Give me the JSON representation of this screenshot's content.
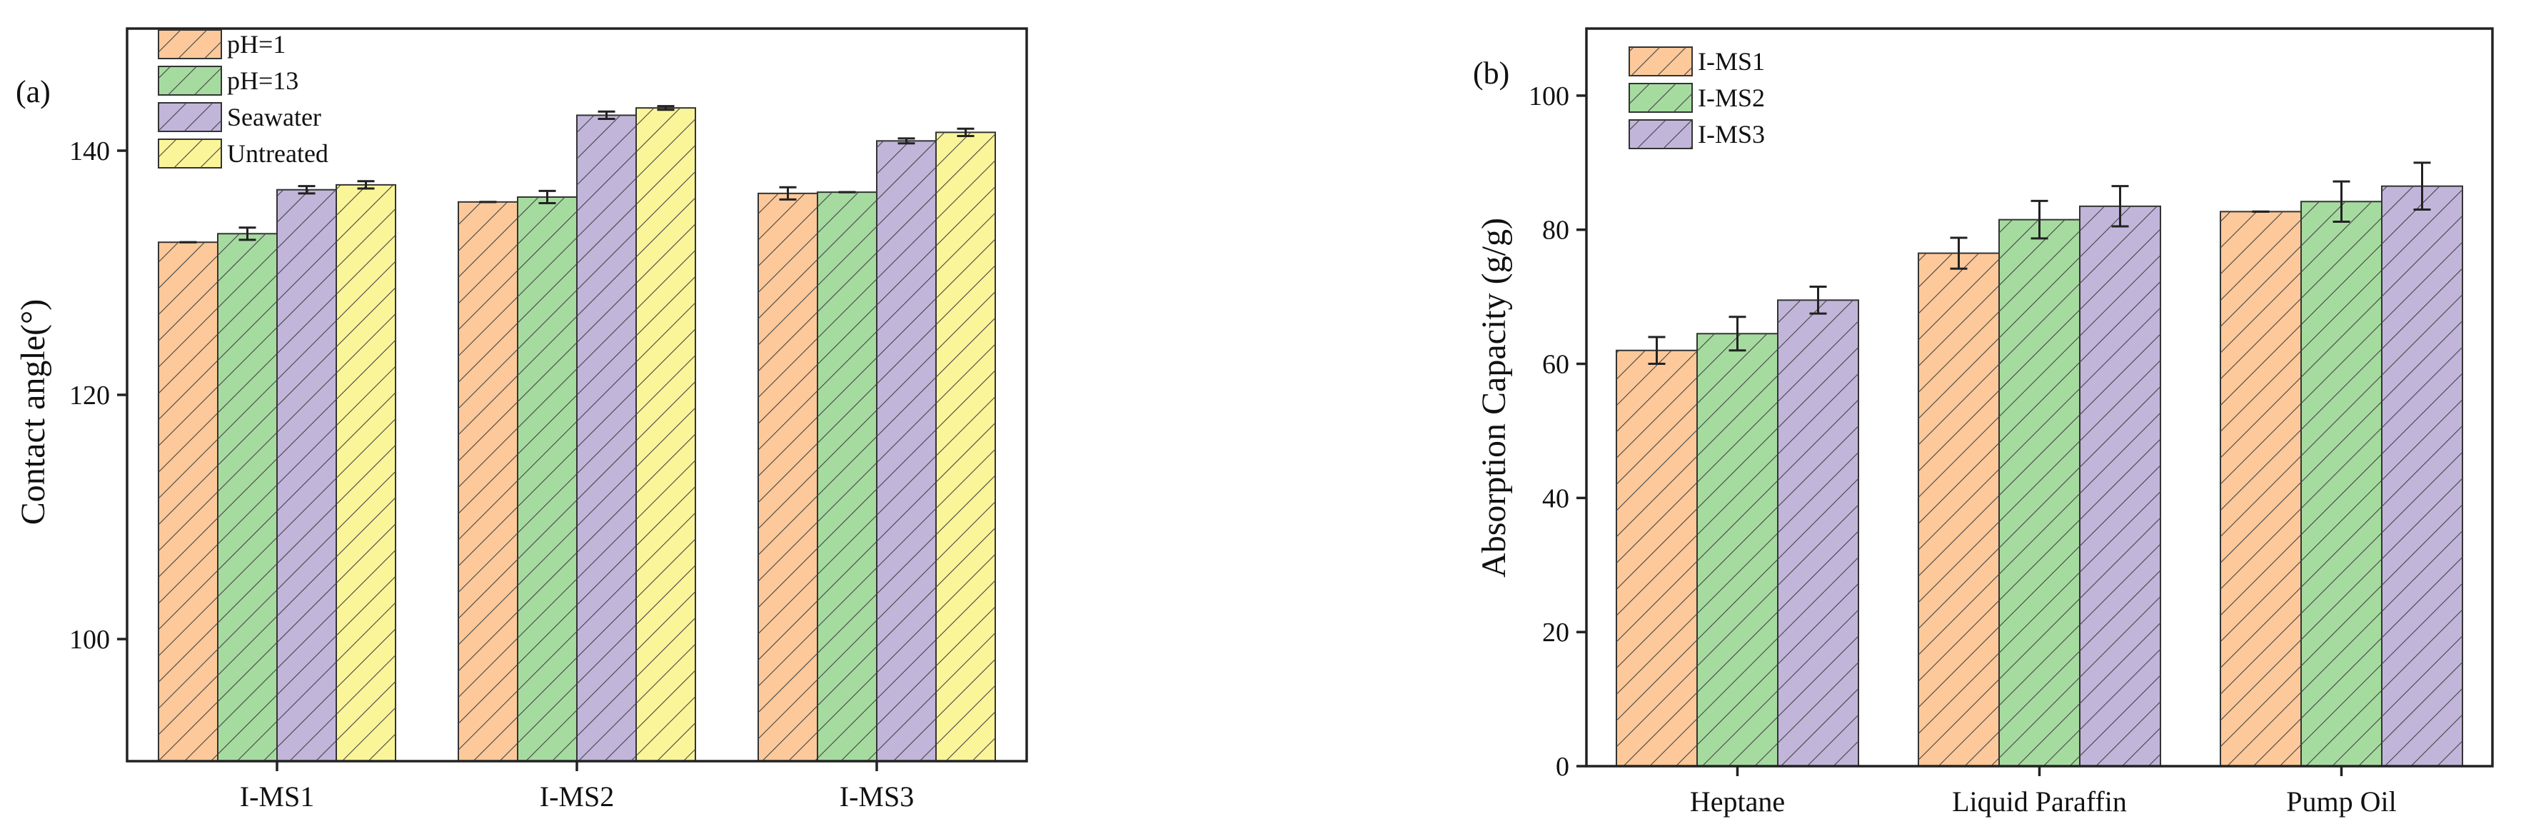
{
  "chart_data": [
    {
      "panel_label": "(a)",
      "type": "bar",
      "title": "",
      "xlabel": "",
      "ylabel": "Contact angle(°)",
      "ylim": [
        90,
        150
      ],
      "yticks": [
        100,
        120,
        140
      ],
      "categories": [
        "I-MS1",
        "I-MS2",
        "I-MS3"
      ],
      "legend_position": "top-left",
      "series": [
        {
          "name": "pH=1",
          "color": "#FDC99A",
          "values": [
            132.5,
            135.8,
            136.5
          ],
          "errors": [
            0,
            0,
            0.5
          ]
        },
        {
          "name": "pH=13",
          "color": "#A6DBA0",
          "values": [
            133.2,
            136.2,
            136.6
          ],
          "errors": [
            0.5,
            0.5,
            0
          ]
        },
        {
          "name": "Seawater",
          "color": "#C2B5DA",
          "values": [
            136.8,
            142.9,
            140.8
          ],
          "errors": [
            0.3,
            0.3,
            0.2
          ]
        },
        {
          "name": "Untreated",
          "color": "#FBF59A",
          "values": [
            137.2,
            143.5,
            141.5
          ],
          "errors": [
            0.3,
            0.15,
            0.3
          ]
        }
      ]
    },
    {
      "panel_label": "(b)",
      "type": "bar",
      "title": "",
      "xlabel": "",
      "ylabel": "Absorption Capacity (g/g)",
      "ylim": [
        0,
        110
      ],
      "yticks": [
        0,
        20,
        40,
        60,
        80,
        100
      ],
      "categories": [
        "Heptane",
        "Liquid Paraffin",
        "Pump Oil"
      ],
      "legend_position": "top-left",
      "series": [
        {
          "name": "I-MS1",
          "color": "#FDC99A",
          "values": [
            62,
            76.5,
            82.7
          ],
          "errors": [
            2,
            2.3,
            0
          ]
        },
        {
          "name": "I-MS2",
          "color": "#A6DBA0",
          "values": [
            64.5,
            81.5,
            84.2
          ],
          "errors": [
            2.5,
            2.8,
            3
          ]
        },
        {
          "name": "I-MS3",
          "color": "#C2B5DA",
          "values": [
            69.5,
            83.5,
            86.5
          ],
          "errors": [
            2,
            3,
            3.5
          ]
        }
      ]
    }
  ]
}
